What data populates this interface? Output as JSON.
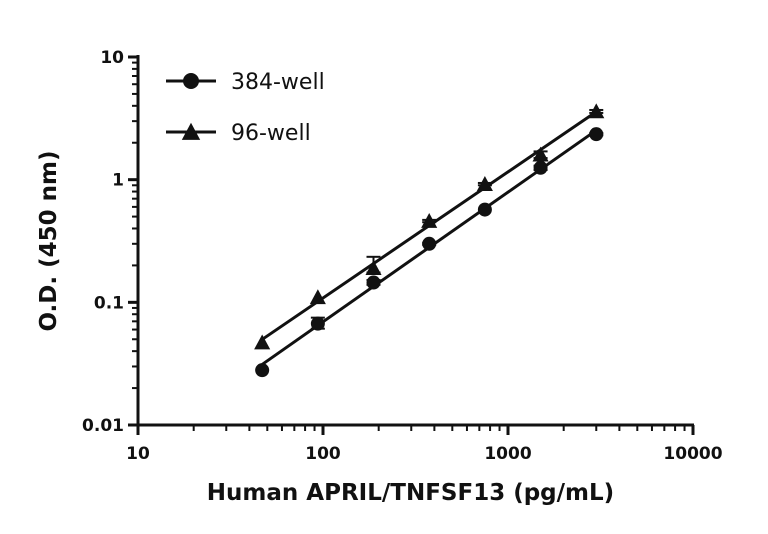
{
  "chart_data": {
    "type": "scatter",
    "x_scale": "log",
    "y_scale": "log",
    "xlim": [
      10,
      10000
    ],
    "ylim": [
      0.01,
      10
    ],
    "x_ticks": [
      "10",
      "100",
      "1000",
      "10000"
    ],
    "y_ticks": [
      "0.01",
      "0.1",
      "1",
      "10"
    ],
    "xlabel": "Human APRIL/TNFSF13 (pg/mL)",
    "ylabel": "O.D. (450 nm)",
    "legend_position": "top-left",
    "grid": false,
    "series": [
      {
        "name": "384-well",
        "marker": "circle",
        "color": "#111111",
        "x": [
          46.9,
          93.8,
          187.5,
          375,
          750,
          1500,
          3000
        ],
        "y": [
          0.028,
          0.067,
          0.145,
          0.3,
          0.57,
          1.25,
          2.35
        ],
        "error_low": [
          0.028,
          0.061,
          0.139,
          0.294,
          0.56,
          1.2,
          2.3
        ],
        "error_high": [
          0.028,
          0.075,
          0.152,
          0.306,
          0.58,
          1.3,
          2.4
        ]
      },
      {
        "name": "96-well",
        "marker": "triangle",
        "color": "#111111",
        "x": [
          46.9,
          93.8,
          187.5,
          375,
          750,
          1500,
          3000
        ],
        "y": [
          0.047,
          0.11,
          0.19,
          0.46,
          0.92,
          1.6,
          3.6
        ],
        "error_low": [
          0.047,
          0.11,
          0.175,
          0.45,
          0.9,
          1.5,
          3.5
        ],
        "error_high": [
          0.047,
          0.11,
          0.235,
          0.47,
          0.94,
          1.7,
          3.7
        ]
      }
    ]
  }
}
